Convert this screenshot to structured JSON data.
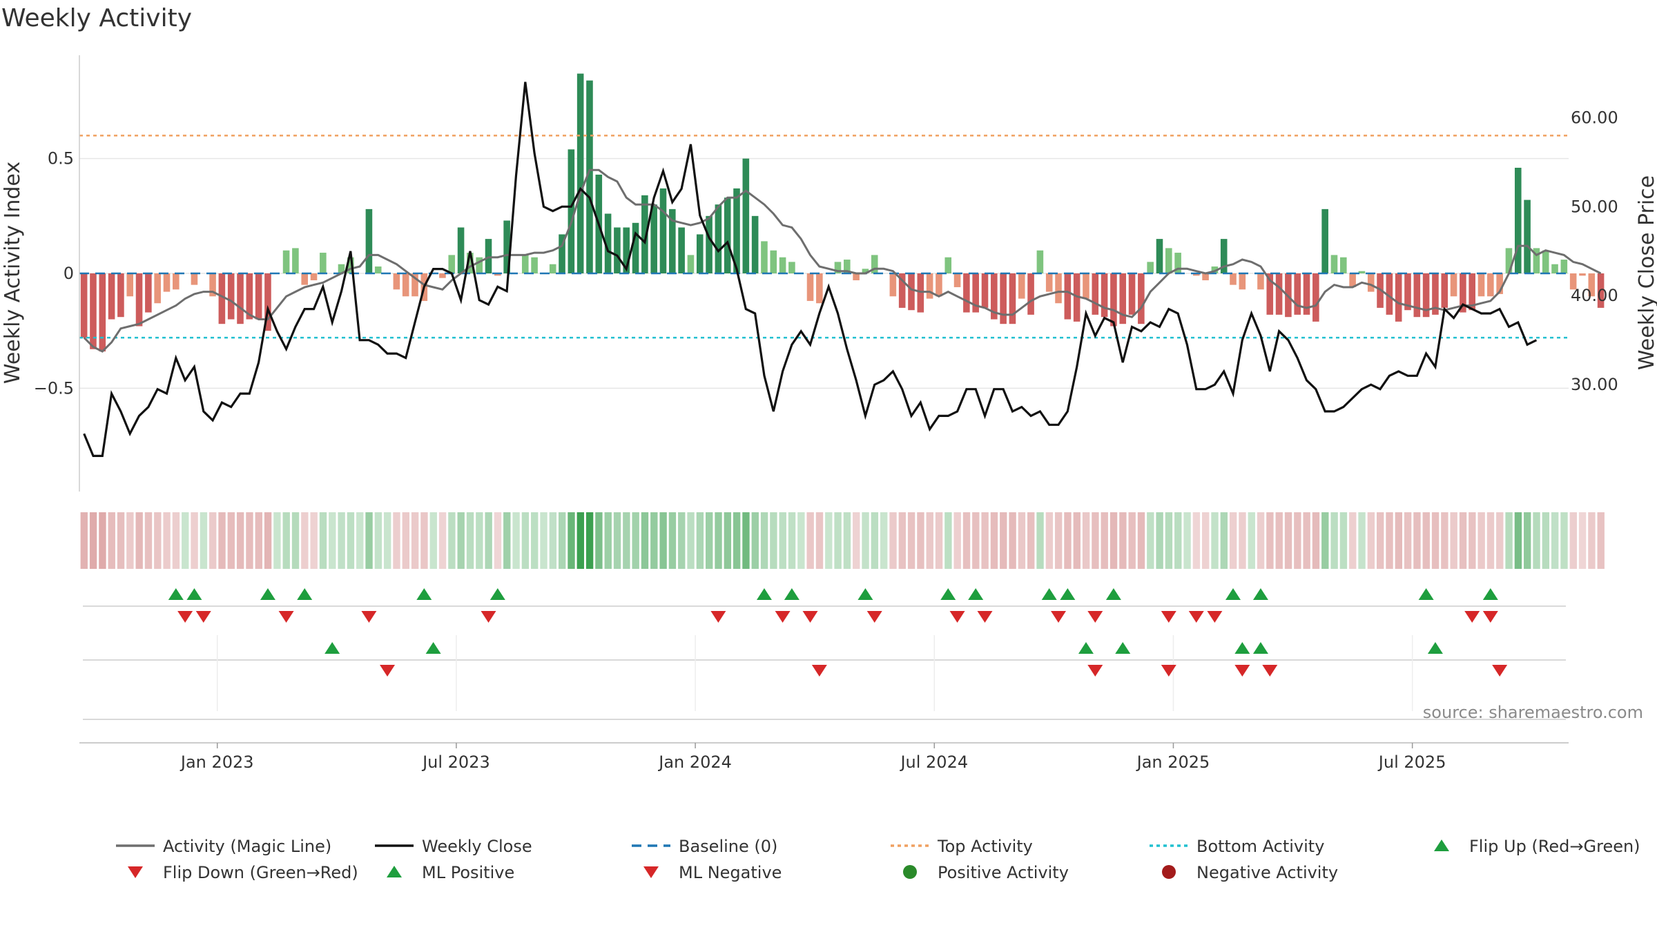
{
  "title": "Weekly Activity",
  "source": "source: sharemaestro.com",
  "colors": {
    "pos_dark": "#2e8b57",
    "pos_light": "#7fc47f",
    "neg_dark": "#cd5c5c",
    "neg_light": "#e8957a",
    "magic": "#6e6e6e",
    "close": "#111111",
    "baseline": "#1f77b4",
    "top": "#f0a060",
    "bottom": "#20c0d0",
    "up": "#1e9e3e",
    "down": "#d62728",
    "dot_pos": "#2a8a2a",
    "dot_neg": "#a31b1b",
    "grid": "#e6e6e6",
    "axis": "#cccccc"
  },
  "chart_data": {
    "type": "bar+line",
    "x_start_week": 0,
    "x_range_weeks": [
      0,
      162
    ],
    "ylabel_left": "Weekly Activity Index",
    "ylabel_right": "Weekly Close Price",
    "ylim_left": [
      -0.95,
      0.95
    ],
    "ylim_right": [
      18,
      67
    ],
    "left_ticks": [
      {
        "v": 0.5,
        "label": "0.5"
      },
      {
        "v": 0,
        "label": "0"
      },
      {
        "v": -0.5,
        "label": "−0.5"
      }
    ],
    "right_ticks": [
      {
        "v": 60,
        "label": "60.00"
      },
      {
        "v": 50,
        "label": "50.00"
      },
      {
        "v": 40,
        "label": "40.00"
      },
      {
        "v": 30,
        "label": "30.00"
      }
    ],
    "x_ticks": [
      {
        "w": 15,
        "label": "Jan 2023"
      },
      {
        "w": 41,
        "label": "Jul 2023"
      },
      {
        "w": 67,
        "label": "Jan 2024"
      },
      {
        "w": 93,
        "label": "Jul 2024"
      },
      {
        "w": 119,
        "label": "Jan 2025"
      },
      {
        "w": 145,
        "label": "Jul 2025"
      }
    ],
    "top_activity": 0.6,
    "bottom_activity": -0.28,
    "baseline": 0,
    "activity": [
      -0.28,
      -0.33,
      -0.34,
      -0.2,
      -0.19,
      -0.1,
      -0.23,
      -0.17,
      -0.13,
      -0.08,
      -0.07,
      0,
      -0.05,
      0,
      -0.1,
      -0.22,
      -0.2,
      -0.22,
      -0.2,
      -0.2,
      -0.25,
      0,
      0.1,
      0.11,
      -0.05,
      -0.03,
      0.09,
      0,
      0.04,
      0.07,
      0,
      0.28,
      0.03,
      0,
      -0.07,
      -0.1,
      -0.1,
      -0.12,
      0,
      -0.02,
      0.08,
      0.2,
      0.09,
      0.07,
      0.15,
      -0.01,
      0.23,
      0,
      0.08,
      0.07,
      0,
      0.04,
      0.17,
      0.54,
      0.87,
      0.84,
      0.43,
      0.26,
      0.2,
      0.2,
      0.22,
      0.34,
      0.3,
      0.37,
      0.28,
      0.2,
      0.08,
      0.17,
      0.25,
      0.3,
      0.33,
      0.37,
      0.5,
      0.25,
      0.14,
      0.1,
      0.07,
      0.05,
      0,
      -0.12,
      -0.13,
      0,
      0.05,
      0.06,
      -0.03,
      0.02,
      0.08,
      0,
      -0.1,
      -0.15,
      -0.16,
      -0.17,
      -0.11,
      -0.1,
      0.07,
      -0.06,
      -0.17,
      -0.17,
      -0.15,
      -0.2,
      -0.22,
      -0.22,
      -0.11,
      -0.18,
      0.1,
      -0.08,
      -0.13,
      -0.2,
      -0.21,
      -0.11,
      -0.18,
      -0.19,
      -0.23,
      -0.22,
      -0.18,
      -0.22,
      0.05,
      0.15,
      0.11,
      0.09,
      0,
      -0.01,
      -0.03,
      0.03,
      0.15,
      -0.05,
      -0.07,
      0,
      -0.07,
      -0.18,
      -0.18,
      -0.19,
      -0.18,
      -0.18,
      -0.21,
      0.28,
      0.08,
      0.07,
      -0.06,
      0.01,
      -0.08,
      -0.15,
      -0.18,
      -0.21,
      -0.16,
      -0.19,
      -0.19,
      -0.18,
      -0.15,
      -0.1,
      -0.17,
      -0.16,
      -0.1,
      -0.1,
      -0.09,
      0.11,
      0.46,
      0.32,
      0.11,
      0.1,
      0.04,
      0.06,
      -0.07,
      -0.01,
      -0.1,
      -0.15
    ],
    "magic_line": [
      -0.28,
      -0.32,
      -0.34,
      -0.3,
      -0.24,
      -0.23,
      -0.22,
      -0.2,
      -0.18,
      -0.16,
      -0.14,
      -0.11,
      -0.09,
      -0.08,
      -0.08,
      -0.1,
      -0.12,
      -0.15,
      -0.18,
      -0.2,
      -0.2,
      -0.15,
      -0.1,
      -0.08,
      -0.06,
      -0.05,
      -0.04,
      -0.02,
      0,
      0.02,
      0.03,
      0.08,
      0.08,
      0.06,
      0.04,
      0.01,
      -0.02,
      -0.05,
      -0.06,
      -0.07,
      -0.03,
      0,
      0.03,
      0.05,
      0.07,
      0.07,
      0.08,
      0.08,
      0.08,
      0.09,
      0.09,
      0.1,
      0.12,
      0.22,
      0.35,
      0.45,
      0.45,
      0.42,
      0.4,
      0.33,
      0.3,
      0.3,
      0.3,
      0.27,
      0.23,
      0.22,
      0.21,
      0.22,
      0.24,
      0.29,
      0.33,
      0.33,
      0.36,
      0.33,
      0.3,
      0.26,
      0.21,
      0.2,
      0.15,
      0.08,
      0.03,
      0.02,
      0.01,
      0.01,
      0,
      0,
      0.02,
      0.02,
      0.01,
      -0.03,
      -0.07,
      -0.08,
      -0.08,
      -0.1,
      -0.08,
      -0.1,
      -0.12,
      -0.14,
      -0.15,
      -0.17,
      -0.18,
      -0.18,
      -0.15,
      -0.12,
      -0.1,
      -0.09,
      -0.08,
      -0.08,
      -0.1,
      -0.11,
      -0.13,
      -0.15,
      -0.16,
      -0.18,
      -0.19,
      -0.15,
      -0.08,
      -0.04,
      0,
      0.02,
      0.02,
      0.01,
      0,
      0.01,
      0.03,
      0.04,
      0.06,
      0.05,
      0.03,
      -0.03,
      -0.06,
      -0.1,
      -0.14,
      -0.15,
      -0.14,
      -0.08,
      -0.05,
      -0.06,
      -0.06,
      -0.04,
      -0.05,
      -0.07,
      -0.1,
      -0.13,
      -0.14,
      -0.15,
      -0.16,
      -0.15,
      -0.16,
      -0.15,
      -0.14,
      -0.14,
      -0.13,
      -0.12,
      -0.08,
      0,
      0.12,
      0.12,
      0.08,
      0.1,
      0.09,
      0.08,
      0.05,
      0.04,
      0.02,
      0
    ],
    "weekly_close": [
      24.5,
      22,
      22,
      29,
      27,
      24.5,
      26.5,
      27.5,
      29.5,
      29,
      33,
      30.5,
      32,
      27,
      26,
      28,
      27.5,
      29,
      29,
      32.5,
      38.5,
      36,
      34,
      36.5,
      38.5,
      38.5,
      41,
      37,
      40.5,
      45,
      35,
      35,
      34.5,
      33.5,
      33.5,
      33,
      37,
      41,
      43,
      43,
      42.5,
      39.5,
      45,
      39.5,
      39,
      41,
      40.5,
      53.5,
      64,
      56,
      50,
      49.5,
      50,
      50,
      52,
      51,
      48,
      45,
      44.5,
      43,
      47,
      46,
      51,
      54,
      50.5,
      52,
      57,
      49,
      46.5,
      45,
      46,
      43,
      38.5,
      38,
      31,
      27,
      31.5,
      34.5,
      36,
      34.5,
      38,
      41,
      38,
      34,
      30.5,
      26.5,
      30,
      30.5,
      31.5,
      29.5,
      26.5,
      28,
      25,
      26.5,
      26.5,
      27,
      29.5,
      29.5,
      26.5,
      29.5,
      29.5,
      27,
      27.5,
      26.5,
      27,
      25.5,
      25.5,
      27,
      32,
      38,
      35.5,
      37.5,
      37,
      32.5,
      36.5,
      36,
      37,
      36.5,
      38.5,
      38,
      34.5,
      29.5,
      29.5,
      30,
      31.5,
      29,
      35,
      38,
      35.5,
      31.5,
      36,
      35,
      33,
      30.5,
      29.5,
      27,
      27,
      27.5,
      28.5,
      29.5,
      30,
      29.5,
      31,
      31.5,
      31,
      31,
      33.5,
      32,
      38.5,
      37.5,
      39,
      38.5,
      38,
      38,
      38.5,
      36.5,
      37,
      34.5,
      35
    ],
    "heat_bands": [
      -0.28,
      -0.33,
      -0.34,
      -0.2,
      -0.19,
      -0.1,
      -0.23,
      -0.17,
      -0.13,
      -0.08,
      -0.07,
      0,
      -0.05,
      0,
      -0.1,
      -0.22,
      -0.2,
      -0.22,
      -0.2,
      -0.2,
      -0.25,
      0,
      0.1,
      0.11,
      -0.05,
      -0.03,
      0.09,
      0,
      0.04,
      0.07,
      0,
      0.28,
      0.03,
      0,
      -0.07,
      -0.1,
      -0.1,
      -0.12,
      0,
      -0.02,
      0.08,
      0.2,
      0.09,
      0.07,
      0.15,
      -0.01,
      0.23,
      0,
      0.08,
      0.07,
      0,
      0.04,
      0.17,
      0.54,
      0.87,
      0.84,
      0.43,
      0.26,
      0.2,
      0.2,
      0.22,
      0.34,
      0.3,
      0.37,
      0.28,
      0.2,
      0.08,
      0.17,
      0.25,
      0.3,
      0.33,
      0.37,
      0.5,
      0.25,
      0.14,
      0.1,
      0.07,
      0.05,
      0,
      -0.12,
      -0.13,
      0,
      0.05,
      0.06,
      -0.03,
      0.02,
      0.08,
      0,
      -0.1,
      -0.15,
      -0.16,
      -0.17,
      -0.11,
      -0.1,
      0.07,
      -0.06,
      -0.17,
      -0.17,
      -0.15,
      -0.2,
      -0.22,
      -0.22,
      -0.11,
      -0.18,
      0.1,
      -0.08,
      -0.13,
      -0.2,
      -0.21,
      -0.11,
      -0.18,
      -0.19,
      -0.23,
      -0.22,
      -0.18,
      -0.22,
      0.05,
      0.15,
      0.11,
      0.09,
      0,
      -0.01,
      -0.03,
      0.03,
      0.15,
      -0.05,
      -0.07,
      0,
      -0.07,
      -0.18,
      -0.18,
      -0.19,
      -0.18,
      -0.18,
      -0.21,
      0.28,
      0.08,
      0.07,
      -0.06,
      0.01,
      -0.08,
      -0.15,
      -0.18,
      -0.21,
      -0.16,
      -0.19,
      -0.19,
      -0.18,
      -0.15,
      -0.1,
      -0.17,
      -0.16,
      -0.1,
      -0.1,
      -0.09,
      0.11,
      0.46,
      0.32,
      0.11,
      0.1,
      0.04,
      0.06,
      -0.07,
      -0.01,
      -0.1,
      -0.15
    ],
    "flip_up_weeks": [
      10,
      12,
      20,
      24,
      37,
      45,
      74,
      77,
      85,
      94,
      97,
      105,
      107,
      112,
      125,
      128,
      146,
      153
    ],
    "flip_down_weeks": [
      11,
      13,
      22,
      31,
      44,
      69,
      76,
      79,
      86,
      95,
      98,
      106,
      110,
      118,
      121,
      123,
      151,
      153
    ],
    "ml_positive_weeks": [
      27,
      38,
      109,
      113,
      126,
      128,
      147
    ],
    "ml_negative_weeks": [
      33,
      80,
      110,
      118,
      126,
      129,
      154
    ],
    "legend": [
      "Activity (Magic Line)",
      "Weekly Close",
      "Baseline (0)",
      "Top Activity",
      "Bottom Activity",
      "Flip Up (Red→Green)",
      "Flip Down (Green→Red)",
      "ML Positive",
      "ML Negative",
      "Positive Activity",
      "Negative Activity"
    ]
  }
}
